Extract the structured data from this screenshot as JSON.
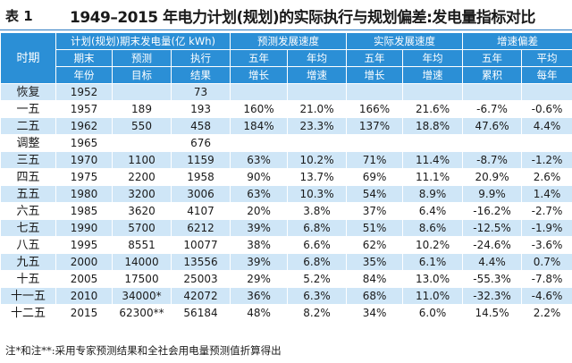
{
  "title": {
    "label": "表 1",
    "text": "1949–2015 年电力计划(规划)的实际执行与规划偏差:发电量指标对比"
  },
  "header": {
    "period": "时期",
    "group1": "计划(规划)期末发电量(亿 kWh)",
    "group2": "预测发展速度",
    "group3": "实际发展速度",
    "group4": "增速偏差",
    "sub": {
      "c1": [
        "期末",
        "年份"
      ],
      "c2": [
        "预测",
        "目标"
      ],
      "c3": [
        "执行",
        "结果"
      ],
      "c4": [
        "五年",
        "增长"
      ],
      "c5": [
        "年均",
        "增速"
      ],
      "c6": [
        "五年",
        "增长"
      ],
      "c7": [
        "年均",
        "增速"
      ],
      "c8": [
        "五年",
        "累积"
      ],
      "c9": [
        "平均",
        "每年"
      ]
    }
  },
  "rows": [
    [
      "恢复",
      "1952",
      "",
      "73",
      "",
      "",
      "",
      "",
      "",
      ""
    ],
    [
      "一五",
      "1957",
      "189",
      "193",
      "160%",
      "21.0%",
      "166%",
      "21.6%",
      "-6.7%",
      "-0.6%"
    ],
    [
      "二五",
      "1962",
      "550",
      "458",
      "184%",
      "23.3%",
      "137%",
      "18.8%",
      "47.6%",
      "4.4%"
    ],
    [
      "调整",
      "1965",
      "",
      "676",
      "",
      "",
      "",
      "",
      "",
      ""
    ],
    [
      "三五",
      "1970",
      "1100",
      "1159",
      "63%",
      "10.2%",
      "71%",
      "11.4%",
      "-8.7%",
      "-1.2%"
    ],
    [
      "四五",
      "1975",
      "2200",
      "1958",
      "90%",
      "13.7%",
      "69%",
      "11.1%",
      "20.9%",
      "2.6%"
    ],
    [
      "五五",
      "1980",
      "3200",
      "3006",
      "63%",
      "10.3%",
      "54%",
      "8.9%",
      "9.9%",
      "1.4%"
    ],
    [
      "六五",
      "1985",
      "3620",
      "4107",
      "20%",
      "3.8%",
      "37%",
      "6.4%",
      "-16.2%",
      "-2.7%"
    ],
    [
      "七五",
      "1990",
      "5700",
      "6212",
      "39%",
      "6.8%",
      "51%",
      "8.6%",
      "-12.5%",
      "-1.9%"
    ],
    [
      "八五",
      "1995",
      "8551",
      "10077",
      "38%",
      "6.6%",
      "62%",
      "10.2%",
      "-24.6%",
      "-3.6%"
    ],
    [
      "九五",
      "2000",
      "14000",
      "13556",
      "39%",
      "6.8%",
      "35%",
      "6.1%",
      "4.4%",
      "0.7%"
    ],
    [
      "十五",
      "2005",
      "17500",
      "25003",
      "29%",
      "5.2%",
      "84%",
      "13.0%",
      "-55.3%",
      "-7.8%"
    ],
    [
      "十一五",
      "2010",
      "34000*",
      "42072",
      "36%",
      "6.3%",
      "68%",
      "11.0%",
      "-32.3%",
      "-4.6%"
    ],
    [
      "十二五",
      "2015",
      "62300**",
      "56184",
      "48%",
      "8.2%",
      "34%",
      "6.0%",
      "14.5%",
      "2.2%"
    ]
  ],
  "note": "注*和注**:采用专家预测结果和全社会用电量预测值折算得出",
  "colors": {
    "header": "#2b8fd6",
    "stripe": "#cfe6f7",
    "rule": "#2a7ac0"
  }
}
